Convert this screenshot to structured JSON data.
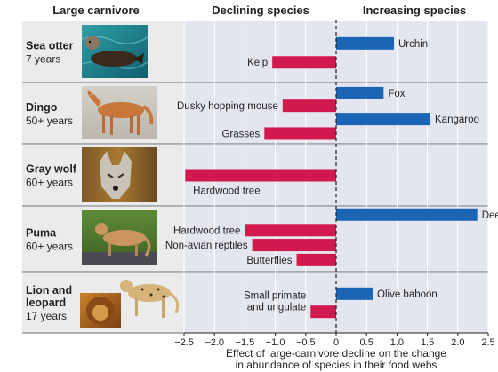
{
  "headers": {
    "carnivore": "Large carnivore",
    "declining": "Declining species",
    "increasing": "Increasing species"
  },
  "colors": {
    "declining": "#d2194e",
    "increasing": "#1c64b4",
    "panel_bg": "#e4e6ef",
    "label_bg": "#ebebeb"
  },
  "chart_data": {
    "type": "bar",
    "orientation": "horizontal",
    "xlabel": [
      "Effect of large-carnivore decline on the change",
      "in abundance of species in their food webs"
    ],
    "xlim": [
      -2.5,
      2.5
    ],
    "ticks": [
      -2.5,
      -2.0,
      -1.5,
      -1.0,
      -0.5,
      0,
      0.5,
      1.0,
      1.5,
      2.0,
      2.5
    ],
    "tick_labels": [
      "−2.5",
      "−2.0",
      "−1.5",
      "−1.0",
      "−0.5",
      "0",
      "0.5",
      "1.0",
      "1.5",
      "2.0",
      "2.5"
    ],
    "panels": [
      {
        "carnivore": "Sea otter",
        "years": "7 years",
        "image": "sea-otter-photo",
        "bars": [
          {
            "species": [
              "Urchin"
            ],
            "value": 0.95
          },
          {
            "species": [
              "Kelp"
            ],
            "value": -1.05
          }
        ]
      },
      {
        "carnivore": "Dingo",
        "years": "50+ years",
        "image": "dingo-photo",
        "bars": [
          {
            "species": [
              "Fox"
            ],
            "value": 0.78
          },
          {
            "species": [
              "Dusky hopping mouse"
            ],
            "value": -0.88
          },
          {
            "species": [
              "Kangaroo"
            ],
            "value": 1.55
          },
          {
            "species": [
              "Grasses"
            ],
            "value": -1.18
          }
        ]
      },
      {
        "carnivore": "Gray wolf",
        "years": "60+ years",
        "image": "gray-wolf-photo",
        "bars": [
          {
            "species": [
              "Hardwood tree"
            ],
            "value": -2.48
          }
        ]
      },
      {
        "carnivore": "Puma",
        "years": "60+ years",
        "image": "puma-photo",
        "bars": [
          {
            "species": [
              "Deer"
            ],
            "value": 2.32
          },
          {
            "species": [
              "Hardwood tree"
            ],
            "value": -1.5
          },
          {
            "species": [
              "Non-avian reptiles"
            ],
            "value": -1.38
          },
          {
            "species": [
              "Butterflies"
            ],
            "value": -0.65
          }
        ]
      },
      {
        "carnivore": "Lion and leopard",
        "years": "17 years",
        "image": "lion-and-leopard-photo",
        "bars": [
          {
            "species": [
              "Olive baboon"
            ],
            "value": 0.6
          },
          {
            "species": [
              "Small primate",
              "and ungulate"
            ],
            "value": -0.42
          }
        ]
      }
    ]
  }
}
